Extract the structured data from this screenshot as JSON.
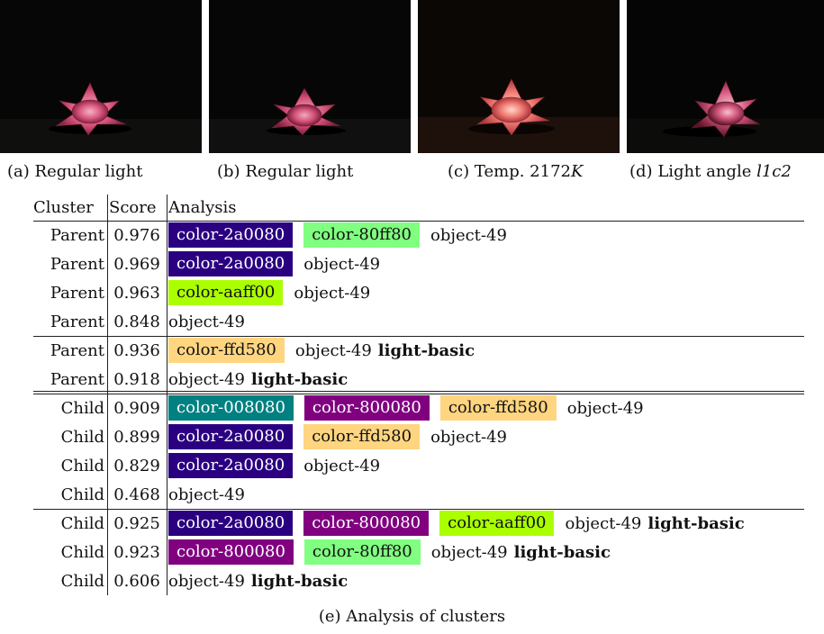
{
  "photos": [
    {
      "caption_prefix": "(a)",
      "caption_text": "Regular light",
      "caption_math": ""
    },
    {
      "caption_prefix": "(b)",
      "caption_text": "Regular light",
      "caption_math": ""
    },
    {
      "caption_prefix": "(c)",
      "caption_text": "Temp. 2172",
      "caption_math": "K"
    },
    {
      "caption_prefix": "(d)",
      "caption_text": "Light angle ",
      "caption_math": "l1c2"
    }
  ],
  "table": {
    "headers": {
      "cluster": "Cluster",
      "score": "Score",
      "analysis": "Analysis"
    },
    "groups": [
      [
        {
          "cluster": "Parent",
          "score": "0.976",
          "colors": [
            {
              "label": "color-2a0080",
              "bg": "#2a0080",
              "fg": "#ffffff"
            },
            {
              "label": "color-80ff80",
              "bg": "#80ff80",
              "fg": "#111111"
            }
          ],
          "object": "object-49",
          "light": ""
        },
        {
          "cluster": "Parent",
          "score": "0.969",
          "colors": [
            {
              "label": "color-2a0080",
              "bg": "#2a0080",
              "fg": "#ffffff"
            }
          ],
          "object": "object-49",
          "light": ""
        },
        {
          "cluster": "Parent",
          "score": "0.963",
          "colors": [
            {
              "label": "color-aaff00",
              "bg": "#aaff00",
              "fg": "#111111"
            }
          ],
          "object": "object-49",
          "light": ""
        },
        {
          "cluster": "Parent",
          "score": "0.848",
          "colors": [],
          "object": "object-49",
          "light": ""
        }
      ],
      [
        {
          "cluster": "Parent",
          "score": "0.936",
          "colors": [
            {
              "label": "color-ffd580",
              "bg": "#ffd580",
              "fg": "#111111"
            }
          ],
          "object": "object-49",
          "light": "light-basic"
        },
        {
          "cluster": "Parent",
          "score": "0.918",
          "colors": [],
          "object": "object-49",
          "light": "light-basic"
        }
      ],
      [
        {
          "cluster": "Child",
          "score": "0.909",
          "colors": [
            {
              "label": "color-008080",
              "bg": "#008080",
              "fg": "#ffffff"
            },
            {
              "label": "color-800080",
              "bg": "#800080",
              "fg": "#ffffff"
            },
            {
              "label": "color-ffd580",
              "bg": "#ffd580",
              "fg": "#111111"
            }
          ],
          "object": "object-49",
          "light": ""
        },
        {
          "cluster": "Child",
          "score": "0.899",
          "colors": [
            {
              "label": "color-2a0080",
              "bg": "#2a0080",
              "fg": "#ffffff"
            },
            {
              "label": "color-ffd580",
              "bg": "#ffd580",
              "fg": "#111111"
            }
          ],
          "object": "object-49",
          "light": ""
        },
        {
          "cluster": "Child",
          "score": "0.829",
          "colors": [
            {
              "label": "color-2a0080",
              "bg": "#2a0080",
              "fg": "#ffffff"
            }
          ],
          "object": "object-49",
          "light": ""
        },
        {
          "cluster": "Child",
          "score": "0.468",
          "colors": [],
          "object": "object-49",
          "light": ""
        }
      ],
      [
        {
          "cluster": "Child",
          "score": "0.925",
          "colors": [
            {
              "label": "color-2a0080",
              "bg": "#2a0080",
              "fg": "#ffffff"
            },
            {
              "label": "color-800080",
              "bg": "#800080",
              "fg": "#ffffff"
            },
            {
              "label": "color-aaff00",
              "bg": "#aaff00",
              "fg": "#111111"
            }
          ],
          "object": "object-49",
          "light": "light-basic"
        },
        {
          "cluster": "Child",
          "score": "0.923",
          "colors": [
            {
              "label": "color-800080",
              "bg": "#800080",
              "fg": "#ffffff"
            },
            {
              "label": "color-80ff80",
              "bg": "#80ff80",
              "fg": "#111111"
            }
          ],
          "object": "object-49",
          "light": "light-basic"
        },
        {
          "cluster": "Child",
          "score": "0.606",
          "colors": [],
          "object": "object-49",
          "light": "light-basic"
        }
      ]
    ],
    "caption": "(e) Analysis of clusters"
  }
}
